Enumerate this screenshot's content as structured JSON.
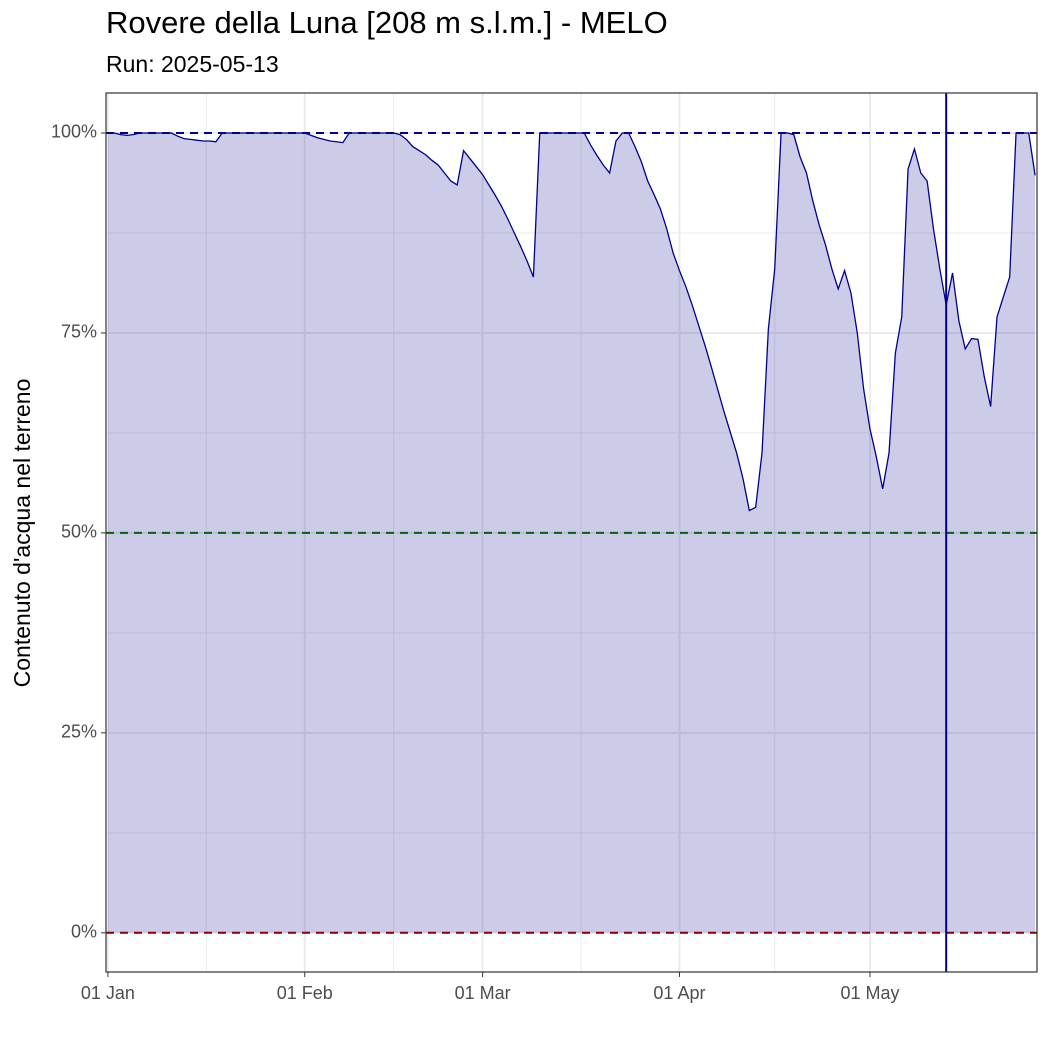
{
  "chart_data": {
    "type": "area",
    "title": "Rovere della Luna [208 m s.l.m.] - MELO",
    "subtitle": "Run: 2025-05-13",
    "y_label": "Contenuto d'acqua nel terreno",
    "color": "#00008b",
    "fill_alpha": 0.2,
    "grid": true,
    "x": [
      0,
      1,
      2,
      3,
      4,
      5,
      6,
      7,
      8,
      9,
      10,
      11,
      12,
      13,
      14,
      15,
      16,
      17,
      18,
      19,
      20,
      21,
      22,
      23,
      24,
      25,
      26,
      27,
      28,
      29,
      30,
      31,
      32,
      33,
      34,
      35,
      36,
      37,
      38,
      39,
      40,
      41,
      42,
      43,
      44,
      45,
      46,
      47,
      48,
      49,
      50,
      51,
      52,
      53,
      54,
      55,
      56,
      57,
      58,
      59,
      60,
      61,
      62,
      63,
      64,
      65,
      66,
      67,
      68,
      69,
      70,
      71,
      72,
      73,
      74,
      75,
      76,
      77,
      78,
      79,
      80,
      81,
      82,
      83,
      84,
      85,
      86,
      87,
      88,
      89,
      90,
      91,
      92,
      93,
      94,
      95,
      96,
      97,
      98,
      99,
      100,
      101,
      102,
      103,
      104,
      105,
      106,
      107,
      108,
      109,
      110,
      111,
      112,
      113,
      114,
      115,
      116,
      117,
      118,
      119,
      120,
      121,
      122,
      123,
      124,
      125,
      126,
      127,
      128,
      129,
      130,
      131,
      132,
      133,
      134,
      135,
      136,
      137,
      138,
      139,
      140,
      141,
      142,
      143,
      144,
      145,
      146
    ],
    "values": [
      100,
      100,
      99.8,
      99.7,
      99.8,
      100,
      100,
      100,
      100,
      100,
      100,
      99.6,
      99.3,
      99.2,
      99.1,
      99.0,
      99.0,
      98.9,
      100,
      100,
      100,
      100,
      100,
      100,
      100,
      100,
      100,
      100,
      100,
      100,
      100,
      100,
      99.7,
      99.4,
      99.2,
      99.0,
      98.9,
      98.8,
      100,
      100,
      100,
      100,
      100,
      100,
      100,
      100,
      99.8,
      99.2,
      98.3,
      97.8,
      97.3,
      96.6,
      96.0,
      95.0,
      94.0,
      93.5,
      97.8,
      96.8,
      95.8,
      94.8,
      93.5,
      92.2,
      90.8,
      89.2,
      87.5,
      85.8,
      84.0,
      82.0,
      100,
      100,
      100,
      100,
      100,
      100,
      100,
      100,
      98.5,
      97.2,
      96.0,
      95.0,
      99.0,
      100,
      100,
      98.3,
      96.4,
      94.0,
      92.3,
      90.5,
      88.0,
      85.0,
      82.8,
      80.8,
      78.5,
      76.0,
      73.5,
      70.8,
      68.0,
      65.2,
      62.6,
      60.0,
      56.8,
      52.8,
      53.2,
      60.0,
      75.5,
      83.0,
      100,
      100,
      99.8,
      97.0,
      95.0,
      91.5,
      88.5,
      86.0,
      83.0,
      80.5,
      82.8,
      80.0,
      75.0,
      68.0,
      63.0,
      59.5,
      55.5,
      60.0,
      72.5,
      77.0,
      95.5,
      98.0,
      95.0,
      94.0,
      88.0,
      83.0,
      78.5,
      82.5,
      76.5,
      73.0,
      74.3,
      74.2,
      69.5,
      65.8,
      77.0,
      79.5,
      82.0,
      100,
      100,
      100,
      94.7
    ],
    "xlim": [
      -0.3,
      146.3
    ],
    "ylim": [
      -4.9,
      105
    ],
    "xticks": [
      {
        "value": 0,
        "label": "01 Jan"
      },
      {
        "value": 31,
        "label": "01 Feb"
      },
      {
        "value": 59,
        "label": "01 Mar"
      },
      {
        "value": 90,
        "label": "01 Apr"
      },
      {
        "value": 120,
        "label": "01 May"
      }
    ],
    "yticks": [
      {
        "value": 0,
        "label": "0%"
      },
      {
        "value": 25,
        "label": "25%"
      },
      {
        "value": 50,
        "label": "50%"
      },
      {
        "value": 75,
        "label": "75%"
      },
      {
        "value": 100,
        "label": "100%"
      }
    ],
    "hlines": [
      {
        "value": 100,
        "color": "#00008b"
      },
      {
        "value": 50,
        "color": "#006400"
      },
      {
        "value": 0,
        "color": "#8b0000"
      }
    ],
    "vline": {
      "value": 132,
      "color": "#00008b"
    }
  }
}
